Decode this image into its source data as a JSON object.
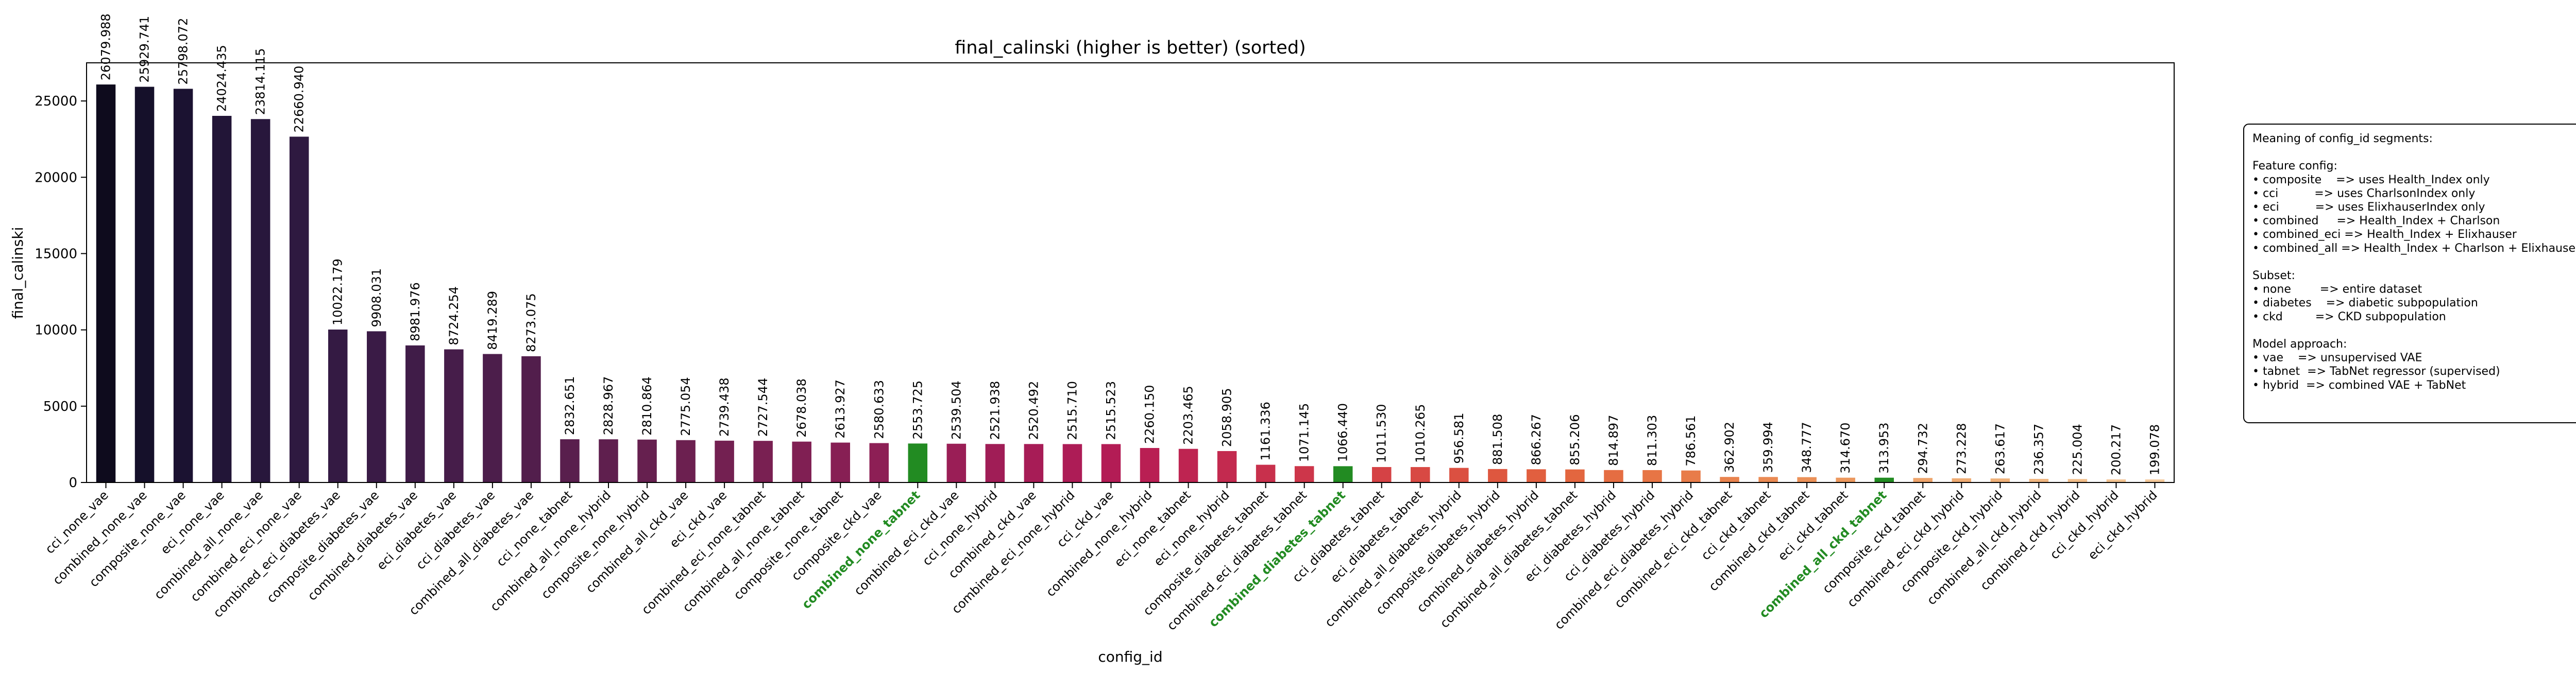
{
  "chart_data": {
    "type": "bar",
    "title": "final_calinski (higher is better) (sorted)",
    "x_label": "config_id",
    "y_label": "final_calinski",
    "categories": [
      "cci_none_vae",
      "combined_none_vae",
      "composite_none_vae",
      "eci_none_vae",
      "combined_all_none_vae",
      "combined_eci_none_vae",
      "combined_eci_diabetes_vae",
      "composite_diabetes_vae",
      "combined_diabetes_vae",
      "eci_diabetes_vae",
      "cci_diabetes_vae",
      "combined_all_diabetes_vae",
      "cci_none_tabnet",
      "combined_all_none_hybrid",
      "composite_none_hybrid",
      "combined_all_ckd_vae",
      "eci_ckd_vae",
      "combined_eci_none_tabnet",
      "combined_all_none_tabnet",
      "composite_none_tabnet",
      "composite_ckd_vae",
      "combined_none_tabnet",
      "combined_eci_ckd_vae",
      "cci_none_hybrid",
      "combined_ckd_vae",
      "combined_eci_none_hybrid",
      "cci_ckd_vae",
      "combined_none_hybrid",
      "eci_none_tabnet",
      "eci_none_hybrid",
      "composite_diabetes_tabnet",
      "combined_eci_diabetes_tabnet",
      "combined_diabetes_tabnet",
      "cci_diabetes_tabnet",
      "eci_diabetes_tabnet",
      "combined_all_diabetes_hybrid",
      "composite_diabetes_hybrid",
      "combined_diabetes_hybrid",
      "combined_all_diabetes_tabnet",
      "eci_diabetes_hybrid",
      "cci_diabetes_hybrid",
      "combined_eci_diabetes_hybrid",
      "combined_eci_ckd_tabnet",
      "cci_ckd_tabnet",
      "combined_ckd_tabnet",
      "eci_ckd_tabnet",
      "combined_all_ckd_tabnet",
      "composite_ckd_tabnet",
      "combined_eci_ckd_hybrid",
      "composite_ckd_hybrid",
      "combined_all_ckd_hybrid",
      "combined_ckd_hybrid",
      "cci_ckd_hybrid",
      "eci_ckd_hybrid"
    ],
    "values": [
      26079.988,
      25929.741,
      25798.072,
      24024.435,
      23814.115,
      22660.94,
      10022.179,
      9908.031,
      8981.976,
      8724.254,
      8419.289,
      8273.075,
      2832.651,
      2828.967,
      2810.864,
      2775.054,
      2739.438,
      2727.544,
      2678.038,
      2613.927,
      2580.633,
      2553.725,
      2539.504,
      2521.938,
      2520.492,
      2515.71,
      2515.523,
      2260.15,
      2203.465,
      2058.905,
      1161.336,
      1071.145,
      1066.44,
      1011.53,
      1010.265,
      956.581,
      881.508,
      866.267,
      855.206,
      814.897,
      811.303,
      786.561,
      362.902,
      359.994,
      348.777,
      314.67,
      313.953,
      294.732,
      273.228,
      263.617,
      236.357,
      225.004,
      200.217,
      199.078
    ],
    "value_labels": [
      "26079.988",
      "25929.741",
      "25798.072",
      "24024.435",
      "23814.115",
      "22660.940",
      "10022.179",
      "9908.031",
      "8981.976",
      "8724.254",
      "8419.289",
      "8273.075",
      "2832.651",
      "2828.967",
      "2810.864",
      "2775.054",
      "2739.438",
      "2727.544",
      "2678.038",
      "2613.927",
      "2580.633",
      "2553.725",
      "2539.504",
      "2521.938",
      "2520.492",
      "2515.710",
      "2515.523",
      "2260.150",
      "2203.465",
      "2058.905",
      "1161.336",
      "1071.145",
      "1066.440",
      "1011.530",
      "1010.265",
      "956.581",
      "881.508",
      "866.267",
      "855.206",
      "814.897",
      "811.303",
      "786.561",
      "362.902",
      "359.994",
      "348.777",
      "314.670",
      "313.953",
      "294.732",
      "273.228",
      "263.617",
      "236.357",
      "225.004",
      "200.217",
      "199.078"
    ],
    "colors": [
      "#0e0b1d",
      "#15102a",
      "#1b1231",
      "#221537",
      "#28173c",
      "#2e1940",
      "#341a43",
      "#3a1b46",
      "#401c48",
      "#461d4a",
      "#4c1e4b",
      "#521e4c",
      "#591f4d",
      "#5f1f4e",
      "#66204f",
      "#6c2050",
      "#732051",
      "#792052",
      "#801f53",
      "#871f54",
      "#8d1f55",
      "#228b22",
      "#9a1e56",
      "#a01d56",
      "#a71c56",
      "#ad1c56",
      "#b31c55",
      "#b91f53",
      "#be2451",
      "#c32a4f",
      "#c8304c",
      "#cd364a",
      "#228b22",
      "#d54245",
      "#d84943",
      "#db5041",
      "#de573f",
      "#e15f3f",
      "#e3663f",
      "#e56d42",
      "#e77545",
      "#e87c49",
      "#e9834e",
      "#ea8a53",
      "#eb9158",
      "#ec985e",
      "#228b22",
      "#eea46b",
      "#efab72",
      "#f0b179",
      "#f1b781",
      "#f2bd89",
      "#f3c391",
      "#f4c99a"
    ],
    "highlight_color": "#228b22",
    "ylim": [
      0,
      27500
    ],
    "yticks": [
      0,
      5000,
      10000,
      15000,
      20000,
      25000
    ],
    "grid": false,
    "annotation": {
      "title": "Meaning of config_id segments:",
      "sections": [
        {
          "heading": "Feature config:",
          "items": [
            "• composite    => uses Health_Index only",
            "• cci          => uses CharlsonIndex only",
            "• eci          => uses ElixhauserIndex only",
            "• combined     => Health_Index + Charlson",
            "• combined_eci => Health_Index + Elixhauser",
            "• combined_all => Health_Index + Charlson + Elixhauser"
          ]
        },
        {
          "heading": "Subset:",
          "items": [
            "• none        => entire dataset",
            "• diabetes    => diabetic subpopulation",
            "• ckd         => CKD subpopulation"
          ]
        },
        {
          "heading": "Model approach:",
          "items": [
            "• vae    => unsupervised VAE",
            "• tabnet  => TabNet regressor (supervised)",
            "• hybrid  => combined VAE + TabNet"
          ]
        }
      ]
    }
  }
}
